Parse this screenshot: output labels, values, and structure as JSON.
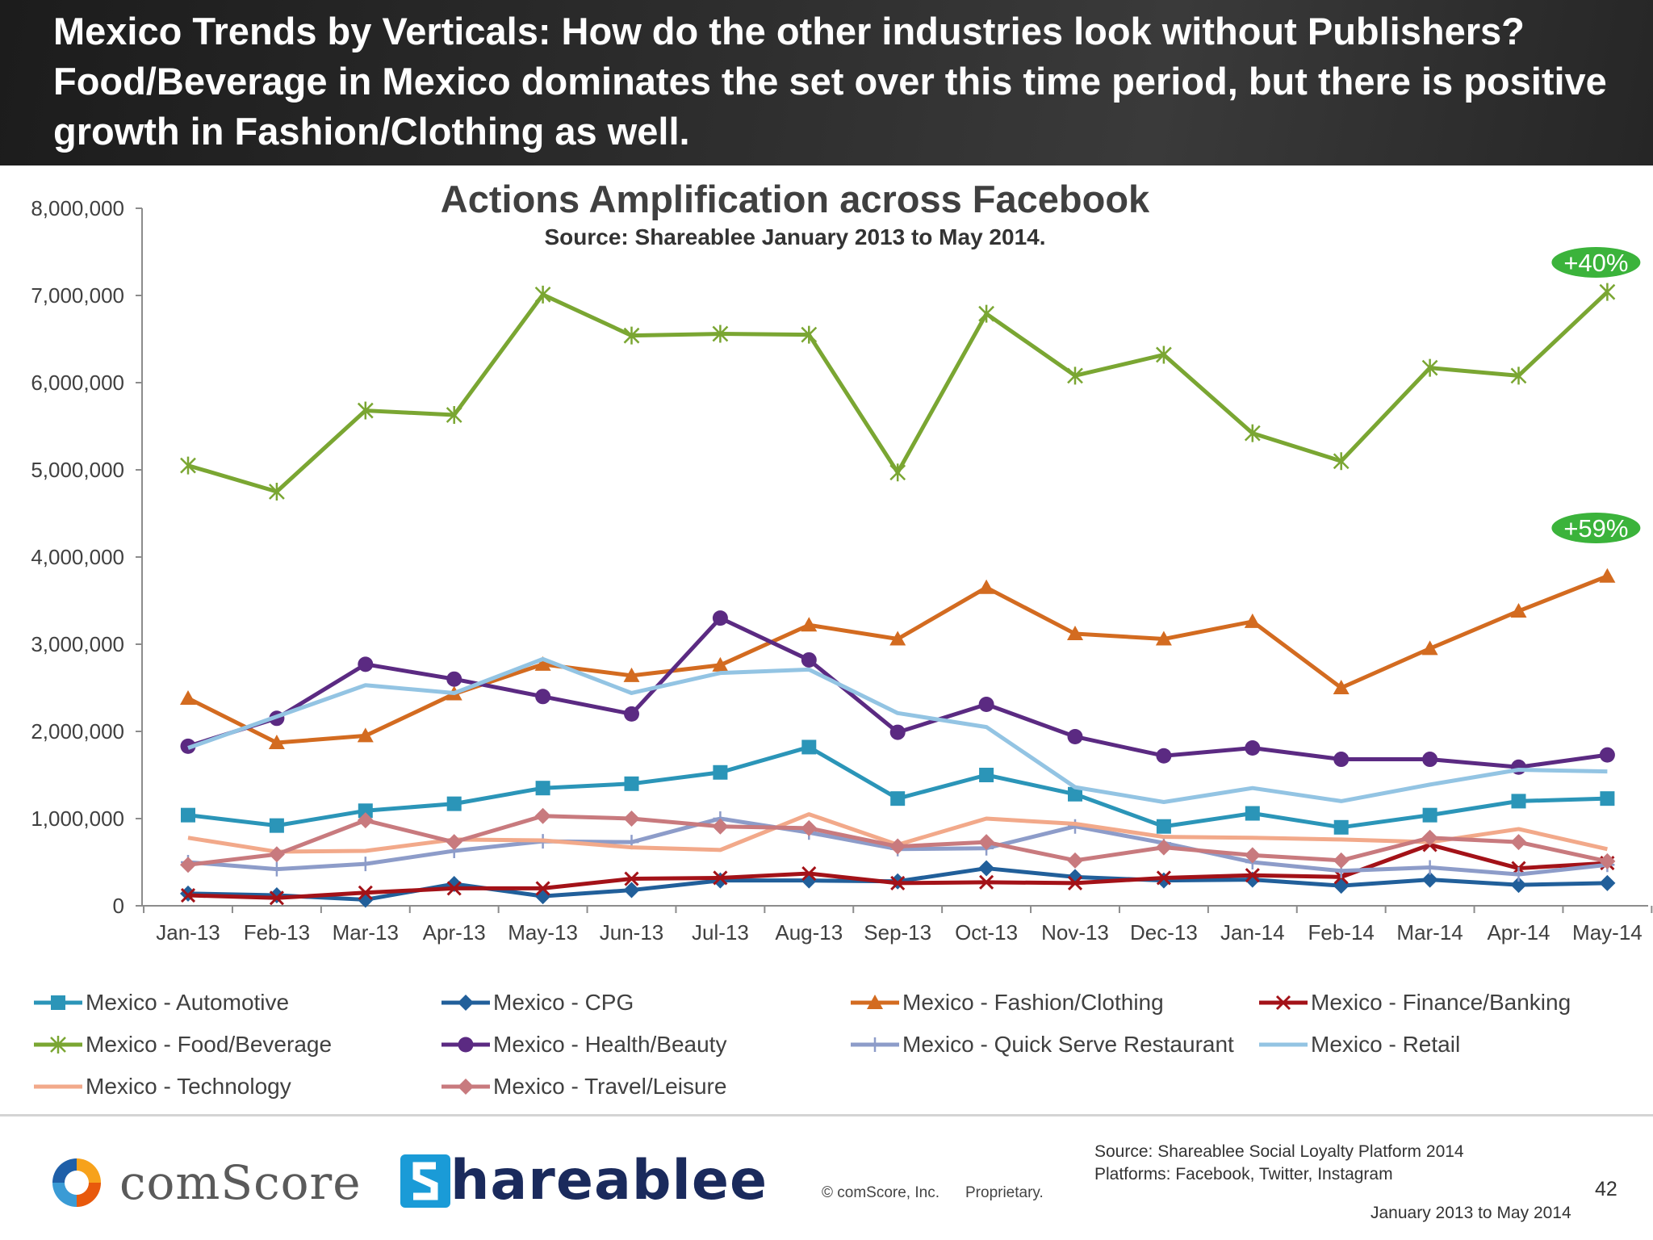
{
  "slide": {
    "title": "Mexico Trends by Verticals: How do the other industries look without Publishers? Food/Beverage in Mexico dominates the set over this time period, but there is  positive growth in Fashion/Clothing as well.",
    "page_number": "42"
  },
  "chart_data": {
    "type": "line",
    "title": "Actions Amplification across Facebook",
    "subtitle": "Source: Shareablee January 2013 to May 2014.",
    "xlabel": "",
    "ylabel": "",
    "ylim": [
      0,
      8000000
    ],
    "yticks": [
      0,
      1000000,
      2000000,
      3000000,
      4000000,
      5000000,
      6000000,
      7000000,
      8000000
    ],
    "ytick_labels": [
      "0",
      "1,000,000",
      "2,000,000",
      "3,000,000",
      "4,000,000",
      "5,000,000",
      "6,000,000",
      "7,000,000",
      "8,000,000"
    ],
    "grid": false,
    "legend_position": "bottom",
    "categories": [
      "Jan-13",
      "Feb-13",
      "Mar-13",
      "Apr-13",
      "May-13",
      "Jun-13",
      "Jul-13",
      "Aug-13",
      "Sep-13",
      "Oct-13",
      "Nov-13",
      "Dec-13",
      "Jan-14",
      "Feb-14",
      "Mar-14",
      "Apr-14",
      "May-14"
    ],
    "series": [
      {
        "name": "Mexico - Automotive",
        "color": "#2b95b8",
        "marker": "square",
        "values": [
          1040000,
          920000,
          1090000,
          1170000,
          1350000,
          1400000,
          1530000,
          1820000,
          1230000,
          1500000,
          1280000,
          910000,
          1060000,
          900000,
          1040000,
          1200000,
          1230000
        ]
      },
      {
        "name": "Mexico - CPG",
        "color": "#215f9a",
        "marker": "diamond",
        "values": [
          140000,
          120000,
          70000,
          250000,
          110000,
          180000,
          290000,
          290000,
          280000,
          430000,
          330000,
          290000,
          300000,
          230000,
          300000,
          240000,
          260000
        ]
      },
      {
        "name": "Mexico - Fashion/Clothing",
        "color": "#d36b20",
        "marker": "triangle",
        "values": [
          2380000,
          1870000,
          1950000,
          2430000,
          2770000,
          2640000,
          2760000,
          3220000,
          3060000,
          3650000,
          3120000,
          3060000,
          3260000,
          2500000,
          2950000,
          3380000,
          3780000
        ]
      },
      {
        "name": "Mexico - Finance/Banking",
        "color": "#a31218",
        "marker": "x",
        "values": [
          120000,
          90000,
          150000,
          200000,
          200000,
          310000,
          320000,
          370000,
          260000,
          270000,
          260000,
          320000,
          350000,
          330000,
          700000,
          430000,
          490000
        ]
      },
      {
        "name": "Mexico - Food/Beverage",
        "color": "#7aa632",
        "marker": "star",
        "values": [
          5050000,
          4750000,
          5680000,
          5630000,
          7010000,
          6540000,
          6560000,
          6550000,
          4970000,
          6790000,
          6080000,
          6320000,
          5420000,
          5100000,
          6170000,
          6080000,
          7040000
        ]
      },
      {
        "name": "Mexico - Health/Beauty",
        "color": "#5b2a82",
        "marker": "circle",
        "values": [
          1830000,
          2150000,
          2770000,
          2600000,
          2400000,
          2200000,
          3300000,
          2820000,
          1990000,
          2310000,
          1940000,
          1720000,
          1810000,
          1680000,
          1680000,
          1590000,
          1730000
        ]
      },
      {
        "name": "Mexico - Quick Serve Restaurant",
        "color": "#8d9cc9",
        "marker": "plus",
        "values": [
          500000,
          420000,
          480000,
          630000,
          740000,
          730000,
          1000000,
          840000,
          650000,
          660000,
          910000,
          720000,
          500000,
          400000,
          440000,
          360000,
          470000
        ]
      },
      {
        "name": "Mexico - Retail",
        "color": "#93c4e3",
        "marker": "none",
        "values": [
          1810000,
          2170000,
          2530000,
          2440000,
          2830000,
          2440000,
          2670000,
          2710000,
          2210000,
          2050000,
          1360000,
          1190000,
          1350000,
          1200000,
          1390000,
          1560000,
          1540000
        ]
      },
      {
        "name": "Mexico - Technology",
        "color": "#f2a98a",
        "marker": "none",
        "values": [
          780000,
          620000,
          630000,
          760000,
          750000,
          670000,
          640000,
          1050000,
          700000,
          1000000,
          940000,
          790000,
          780000,
          760000,
          730000,
          880000,
          650000
        ]
      },
      {
        "name": "Mexico - Travel/Leisure",
        "color": "#c87a7e",
        "marker": "diamond",
        "values": [
          470000,
          590000,
          980000,
          730000,
          1030000,
          1000000,
          910000,
          890000,
          680000,
          730000,
          520000,
          670000,
          580000,
          520000,
          780000,
          730000,
          510000
        ]
      }
    ],
    "annotations": [
      {
        "text": "+40%",
        "series": "Mexico - Food/Beverage"
      },
      {
        "text": "+59%",
        "series": "Mexico - Fashion/Clothing"
      }
    ]
  },
  "footer": {
    "comscore_logo": "comScore",
    "shareablee_logo": "hareablee",
    "copyright": "© comScore, Inc.",
    "proprietary": "Proprietary.",
    "source_line1": "Source: Shareablee Social Loyalty Platform 2014",
    "source_line2": "Platforms: Facebook, Twitter, Instagram",
    "date_range": "January 2013 to May 2014"
  }
}
